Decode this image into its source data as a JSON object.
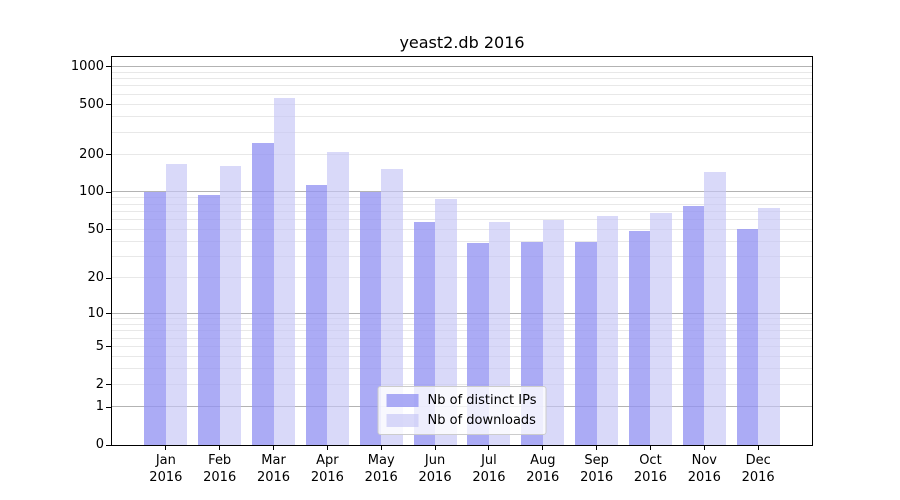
{
  "title": "yeast2.db 2016",
  "chart_data": {
    "type": "bar",
    "title": "yeast2.db 2016",
    "categories": [
      "Jan",
      "Feb",
      "Mar",
      "Apr",
      "May",
      "Jun",
      "Jul",
      "Aug",
      "Sep",
      "Oct",
      "Nov",
      "Dec"
    ],
    "category_year": "2016",
    "series": [
      {
        "name": "Nb of distinct IPs",
        "color": "rgba(147,147,242,0.78)",
        "solid_color": "#aaaaf5",
        "values": [
          100,
          96,
          248,
          114,
          100,
          58,
          39,
          40,
          40,
          49,
          78,
          51
        ]
      },
      {
        "name": "Nb of downloads",
        "color": "rgba(197,197,246,0.66)",
        "solid_color": "#d8d8f8",
        "values": [
          170,
          163,
          570,
          210,
          153,
          88,
          58,
          60,
          65,
          68,
          146,
          75
        ]
      }
    ],
    "yscale": "log10(value+1)",
    "y_ticks": [
      0,
      1,
      2,
      5,
      10,
      20,
      50,
      100,
      200,
      500,
      1000
    ],
    "ylim": [
      0,
      1200
    ],
    "xlabel": "",
    "ylabel": "",
    "grid": {
      "horizontal": true,
      "major_color": "#b3b3b3",
      "minor_color": "#e8e8e8"
    },
    "legend_position": "lower center"
  }
}
